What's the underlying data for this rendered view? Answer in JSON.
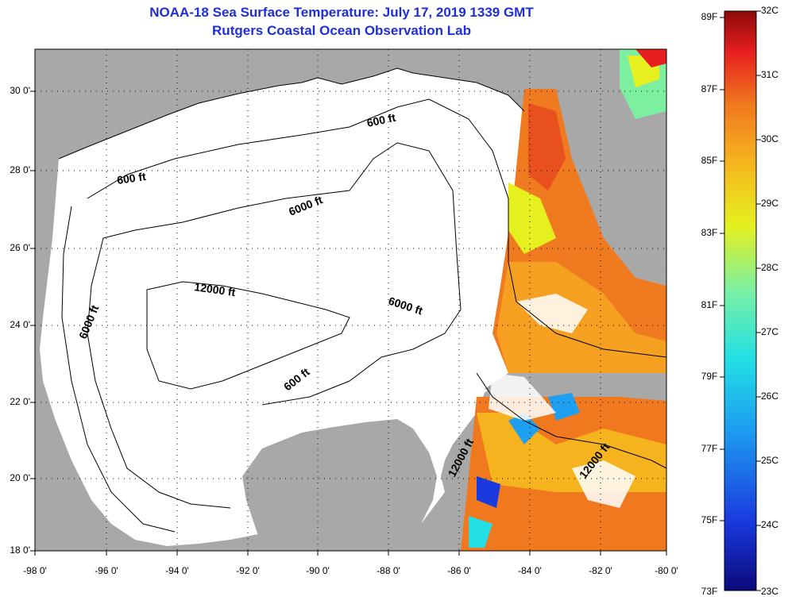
{
  "title": {
    "line1": "NOAA-18 Sea Surface Temperature:  July 17, 2019 1339 GMT",
    "line2": "Rutgers Coastal Ocean Observation Lab"
  },
  "axes": {
    "latitude_labels": [
      "30 0'",
      "28 0'",
      "26 0'",
      "24 0'",
      "22 0'",
      "20 0'",
      "18 0'"
    ],
    "longitude_labels": [
      "-98 0'",
      "-96 0'",
      "-94 0'",
      "-92 0'",
      "-90 0'",
      "-88 0'",
      "-86 0'",
      "-84 0'",
      "-82 0'",
      "-80 0'"
    ]
  },
  "contours": {
    "labels": [
      "600 ft",
      "600 ft",
      "6000 ft",
      "12000 ft",
      "6000 ft",
      "6000 ft",
      "600 ft",
      "12000 ft",
      "12000 ft"
    ]
  },
  "colorbar": {
    "fahrenheit_labels": [
      "89F",
      "87F",
      "85F",
      "83F",
      "81F",
      "79F",
      "77F",
      "75F",
      "73F"
    ],
    "celsius_labels": [
      "32C",
      "31C",
      "30C",
      "29C",
      "28C",
      "27C",
      "26C",
      "25C",
      "24C",
      "23C"
    ],
    "colors": [
      "#0a0a7a",
      "#1a3ae0",
      "#1e9ff0",
      "#22e0e6",
      "#7cf0a0",
      "#e6f01e",
      "#f5b41e",
      "#f0781e",
      "#e61e1e",
      "#8c0a0a"
    ]
  },
  "colors": {
    "land": "#a8a8a8",
    "ocean": "#ffffff",
    "title": "#1f2fd6"
  }
}
